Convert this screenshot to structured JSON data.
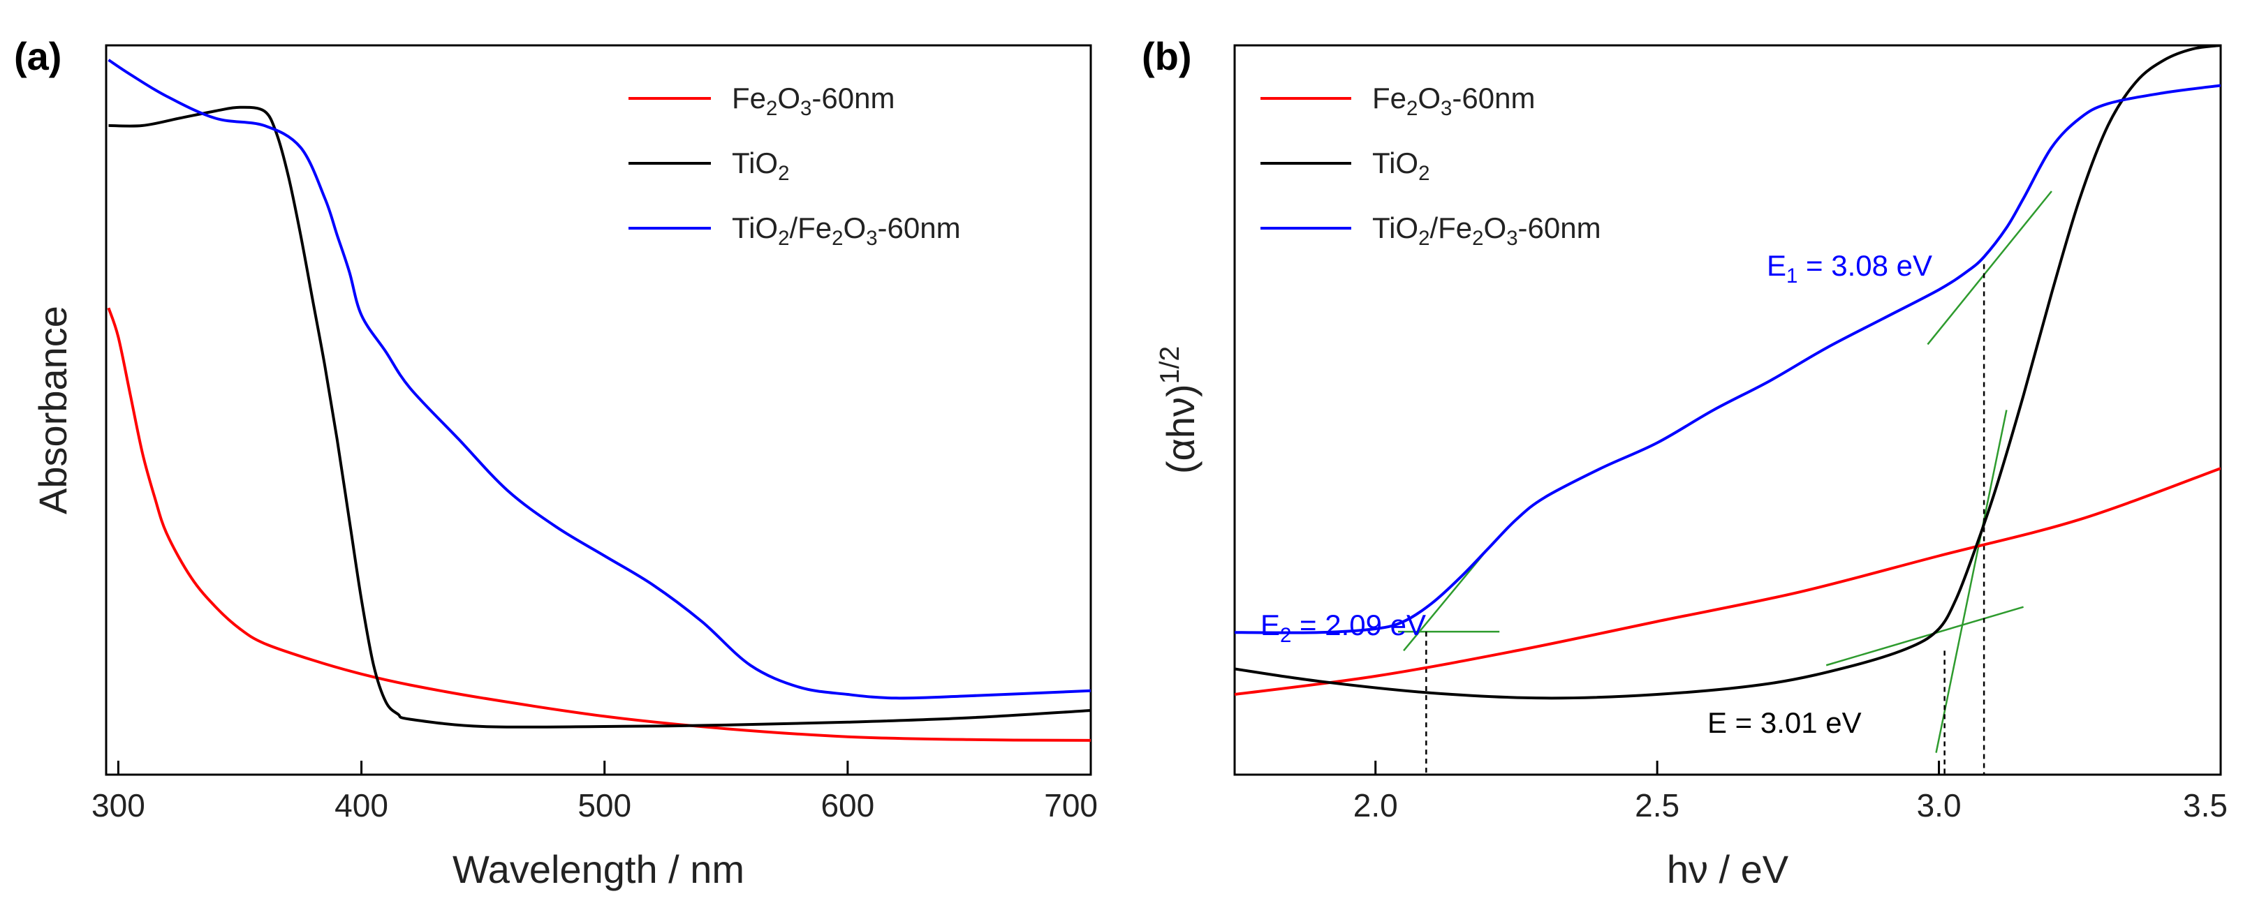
{
  "chart_data": [
    {
      "id": "a",
      "type": "line",
      "panel_label": "(a)",
      "xlabel": "Wavelength / nm",
      "ylabel": "Absorbance",
      "xlim": [
        295,
        700
      ],
      "ylim": [
        0,
        1
      ],
      "xticks": [
        300,
        400,
        500,
        600,
        700
      ],
      "xtick_labels": [
        "300",
        "400",
        "500",
        "600",
        "700"
      ],
      "y_tick_labels_shown": false,
      "legend_position": "top-right",
      "series": [
        {
          "name": "Fe2O3-60nm",
          "label_parts": [
            [
              "Fe",
              ""
            ],
            [
              "2",
              "sub"
            ],
            [
              "O",
              ""
            ],
            [
              "3",
              "sub"
            ],
            [
              "-60nm",
              ""
            ]
          ],
          "color": "#ff0000",
          "x": [
            296,
            300,
            305,
            310,
            315,
            320,
            330,
            340,
            350,
            360,
            380,
            400,
            420,
            450,
            500,
            550,
            600,
            650,
            700
          ],
          "y": [
            0.64,
            0.6,
            0.52,
            0.44,
            0.38,
            0.33,
            0.27,
            0.23,
            0.2,
            0.18,
            0.157,
            0.138,
            0.123,
            0.105,
            0.08,
            0.063,
            0.052,
            0.048,
            0.047
          ]
        },
        {
          "name": "TiO2",
          "label_parts": [
            [
              "TiO",
              ""
            ],
            [
              "2",
              "sub"
            ]
          ],
          "color": "#000000",
          "x": [
            296,
            310,
            325,
            340,
            350,
            360,
            365,
            370,
            375,
            380,
            385,
            390,
            395,
            400,
            405,
            410,
            415,
            420,
            450,
            500,
            550,
            600,
            650,
            700
          ],
          "y": [
            0.89,
            0.89,
            0.9,
            0.91,
            0.915,
            0.91,
            0.88,
            0.82,
            0.74,
            0.65,
            0.56,
            0.46,
            0.35,
            0.24,
            0.15,
            0.1,
            0.083,
            0.076,
            0.066,
            0.066,
            0.068,
            0.072,
            0.078,
            0.088
          ]
        },
        {
          "name": "TiO2/Fe2O3-60nm",
          "label_parts": [
            [
              "TiO",
              ""
            ],
            [
              "2",
              "sub"
            ],
            [
              "/Fe",
              ""
            ],
            [
              "2",
              "sub"
            ],
            [
              "O",
              ""
            ],
            [
              "3",
              "sub"
            ],
            [
              "-60nm",
              ""
            ]
          ],
          "color": "#0000ff",
          "x": [
            296,
            305,
            320,
            340,
            360,
            375,
            385,
            390,
            395,
            400,
            410,
            420,
            440,
            460,
            480,
            500,
            520,
            540,
            560,
            580,
            600,
            620,
            650,
            700
          ],
          "y": [
            0.98,
            0.96,
            0.93,
            0.9,
            0.89,
            0.86,
            0.79,
            0.74,
            0.69,
            0.63,
            0.58,
            0.53,
            0.46,
            0.39,
            0.34,
            0.3,
            0.26,
            0.21,
            0.15,
            0.12,
            0.11,
            0.105,
            0.108,
            0.115
          ]
        }
      ]
    },
    {
      "id": "b",
      "type": "line",
      "panel_label": "(b)",
      "xlabel": "hν / eV",
      "ylabel_main": "(αhν)",
      "ylabel_sup": "1/2",
      "xlim": [
        1.75,
        3.5
      ],
      "ylim": [
        0,
        1
      ],
      "xticks": [
        2.0,
        2.5,
        3.0,
        3.5
      ],
      "xtick_labels": [
        "2.0",
        "2.5",
        "3.0",
        "3.5"
      ],
      "y_tick_labels_shown": false,
      "legend_position": "top-left",
      "series": [
        {
          "name": "Fe2O3-60nm",
          "label_parts": [
            [
              "Fe",
              ""
            ],
            [
              "2",
              "sub"
            ],
            [
              "O",
              ""
            ],
            [
              "3",
              "sub"
            ],
            [
              "-60nm",
              ""
            ]
          ],
          "color": "#ff0000",
          "x": [
            1.75,
            2.0,
            2.25,
            2.5,
            2.75,
            3.0,
            3.25,
            3.5
          ],
          "y": [
            0.11,
            0.135,
            0.17,
            0.21,
            0.25,
            0.3,
            0.35,
            0.42
          ]
        },
        {
          "name": "TiO2",
          "label_parts": [
            [
              "TiO",
              ""
            ],
            [
              "2",
              "sub"
            ]
          ],
          "color": "#000000",
          "x": [
            1.75,
            1.9,
            2.1,
            2.3,
            2.5,
            2.7,
            2.85,
            2.95,
            3.0,
            3.03,
            3.06,
            3.1,
            3.15,
            3.2,
            3.25,
            3.3,
            3.35,
            3.4,
            3.45,
            3.5
          ],
          "y": [
            0.145,
            0.128,
            0.112,
            0.105,
            0.11,
            0.125,
            0.15,
            0.175,
            0.2,
            0.24,
            0.3,
            0.39,
            0.52,
            0.66,
            0.79,
            0.89,
            0.95,
            0.98,
            0.995,
            1.0
          ]
        },
        {
          "name": "TiO2/Fe2O3-60nm",
          "label_parts": [
            [
              "TiO",
              ""
            ],
            [
              "2",
              "sub"
            ],
            [
              "/Fe",
              ""
            ],
            [
              "2",
              "sub"
            ],
            [
              "O",
              ""
            ],
            [
              "3",
              "sub"
            ],
            [
              "-60nm",
              ""
            ]
          ],
          "color": "#0000ff",
          "x": [
            1.75,
            1.9,
            2.0,
            2.05,
            2.1,
            2.15,
            2.2,
            2.25,
            2.3,
            2.4,
            2.5,
            2.6,
            2.7,
            2.8,
            2.9,
            3.0,
            3.05,
            3.08,
            3.12,
            3.15,
            3.2,
            3.25,
            3.3,
            3.4,
            3.5
          ],
          "y": [
            0.195,
            0.195,
            0.2,
            0.21,
            0.235,
            0.27,
            0.31,
            0.35,
            0.38,
            0.42,
            0.455,
            0.5,
            0.54,
            0.585,
            0.625,
            0.665,
            0.69,
            0.71,
            0.75,
            0.79,
            0.86,
            0.9,
            0.92,
            0.935,
            0.945
          ]
        }
      ],
      "tangent_lines": [
        {
          "x1": 2.05,
          "y1": 0.17,
          "x2": 2.2,
          "y2": 0.31
        },
        {
          "x1": 2.04,
          "y1": 0.196,
          "x2": 2.22,
          "y2": 0.196
        },
        {
          "x1": 2.98,
          "y1": 0.59,
          "x2": 3.2,
          "y2": 0.8
        },
        {
          "x1": 2.8,
          "y1": 0.15,
          "x2": 3.15,
          "y2": 0.23
        },
        {
          "x1": 2.995,
          "y1": 0.03,
          "x2": 3.12,
          "y2": 0.5
        }
      ],
      "dashed_lines": [
        {
          "x": 2.09,
          "y_top": 0.196
        },
        {
          "x": 3.01,
          "y_top": 0.17
        },
        {
          "x": 3.08,
          "y_top": 0.7
        }
      ],
      "annotations": [
        {
          "color": "#0000ff",
          "parts": [
            [
              "E",
              ""
            ],
            [
              "2",
              "sub"
            ],
            [
              " = 2.09 eV",
              ""
            ]
          ]
        },
        {
          "color": "#0000ff",
          "parts": [
            [
              "E",
              ""
            ],
            [
              "1",
              "sub"
            ],
            [
              " = 3.08 eV",
              ""
            ]
          ]
        },
        {
          "color": "#000000",
          "parts": [
            [
              "E = 3.01 eV",
              ""
            ]
          ]
        }
      ]
    }
  ]
}
